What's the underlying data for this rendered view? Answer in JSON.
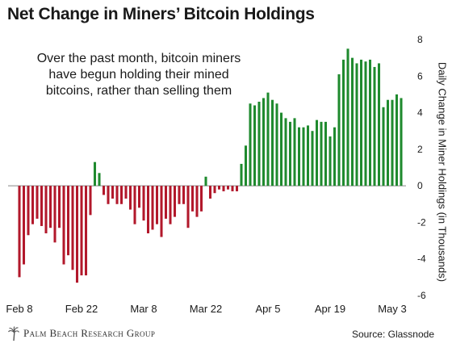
{
  "title": "Net Change in Miners’ Bitcoin Holdings",
  "annotation_lines": [
    "Over the past month, bitcoin miners",
    "have begun holding their mined",
    "bitcoins, rather than selling them"
  ],
  "footer": {
    "brand": "Palm Beach Research Group",
    "source": "Source: Glassnode"
  },
  "colors": {
    "positive": "#1f8a2e",
    "negative": "#b2182b",
    "axis": "#888888",
    "text": "#1a1a1a"
  },
  "chart_data": {
    "type": "bar",
    "ylabel": "Daily Change in Miner Holdings (in Thousands)",
    "ylim": [
      -6,
      8
    ],
    "yticks": [
      -6,
      -4,
      -2,
      0,
      2,
      4,
      6,
      8
    ],
    "x_tick_labels": [
      {
        "label": "Feb 8",
        "index": 0
      },
      {
        "label": "Feb 22",
        "index": 14
      },
      {
        "label": "Mar 8",
        "index": 28
      },
      {
        "label": "Mar 22",
        "index": 42
      },
      {
        "label": "Apr 5",
        "index": 56
      },
      {
        "label": "Apr 19",
        "index": 70
      },
      {
        "label": "May 3",
        "index": 84
      }
    ],
    "start_date": "Feb 8",
    "values": [
      -5.0,
      -4.3,
      -2.7,
      -2.1,
      -1.8,
      -2.2,
      -2.6,
      -2.3,
      -3.1,
      -2.3,
      -4.3,
      -3.8,
      -4.6,
      -5.3,
      -4.9,
      -4.9,
      -1.6,
      1.3,
      0.7,
      -0.5,
      -1.0,
      -0.7,
      -1.0,
      -1.0,
      -0.7,
      -1.3,
      -2.1,
      -1.2,
      -1.9,
      -2.6,
      -2.4,
      -2.1,
      -2.8,
      -1.8,
      -2.1,
      -1.7,
      -1.0,
      -1.0,
      -2.3,
      -1.4,
      -1.7,
      -1.4,
      0.5,
      -0.7,
      -0.4,
      -0.2,
      -0.3,
      -0.2,
      -0.3,
      -0.3,
      1.2,
      2.2,
      4.5,
      4.4,
      4.6,
      4.8,
      5.1,
      4.7,
      4.5,
      4.0,
      3.7,
      3.5,
      3.7,
      3.2,
      3.2,
      3.3,
      3.0,
      3.6,
      3.5,
      3.5,
      2.7,
      3.2,
      6.1,
      6.9,
      7.5,
      7.0,
      6.7,
      6.9,
      6.8,
      6.9,
      6.5,
      6.7,
      4.3,
      4.7,
      4.7,
      5.0,
      4.8
    ],
    "grid": false,
    "legend": "none"
  }
}
